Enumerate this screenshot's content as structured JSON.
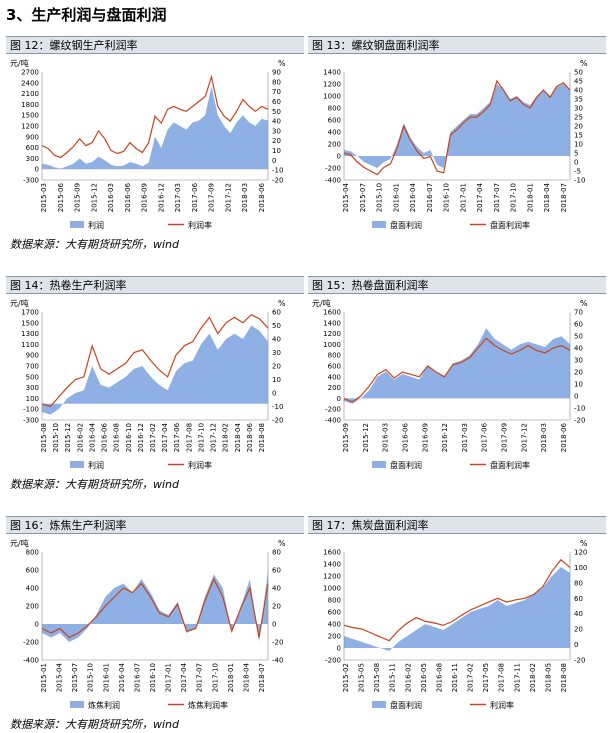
{
  "page": {
    "section_title": "3、生产利润与盘面利润",
    "source_note": "数据来源：大有期货研究所，wind"
  },
  "colors": {
    "area": "#8fb0e4",
    "line": "#c84318"
  },
  "chart_data": [
    {
      "id": "fig12",
      "type": "area+line",
      "title": "图 12：螺纹钢生产利润率",
      "left_unit": "元/吨",
      "right_unit": "%",
      "left_ticks": [
        "2700",
        "2400",
        "2100",
        "1800",
        "1500",
        "1200",
        "900",
        "600",
        "300",
        "0",
        "-300"
      ],
      "right_ticks": [
        "90",
        "80",
        "70",
        "60",
        "50",
        "40",
        "30",
        "20",
        "10",
        "0",
        "-10",
        "-20"
      ],
      "ylim_left": [
        -300,
        2700
      ],
      "ylim_right": [
        -20,
        90
      ],
      "x_labels": [
        "2015-03",
        "2015-06",
        "2015-09",
        "2015-12",
        "2016-03",
        "2016-06",
        "2016-09",
        "2016-12",
        "2017-03",
        "2017-06",
        "2017-09",
        "2017-12",
        "2018-03",
        "2018-06"
      ],
      "legend": [
        "利润",
        "利润率"
      ],
      "area_series": {
        "name": "利润",
        "values": [
          150,
          120,
          50,
          20,
          80,
          150,
          300,
          150,
          200,
          350,
          250,
          120,
          80,
          100,
          200,
          150,
          80,
          180,
          900,
          600,
          1100,
          1300,
          1200,
          1100,
          1300,
          1350,
          1500,
          2300,
          1500,
          1200,
          1000,
          1300,
          1500,
          1300,
          1200,
          1400,
          1350
        ]
      },
      "line_series": {
        "name": "利润率",
        "values": [
          15,
          12,
          5,
          3,
          8,
          14,
          22,
          15,
          18,
          30,
          22,
          10,
          7,
          9,
          18,
          12,
          8,
          18,
          45,
          38,
          52,
          55,
          52,
          50,
          55,
          60,
          65,
          85,
          55,
          45,
          40,
          50,
          62,
          55,
          50,
          55,
          52
        ]
      }
    },
    {
      "id": "fig13",
      "type": "area+line",
      "title": "图 13：螺纹钢盘面利润率",
      "left_unit": "",
      "right_unit": "%",
      "left_ticks": [
        "1400",
        "1200",
        "1000",
        "800",
        "600",
        "400",
        "200",
        "0",
        "-200",
        "-400"
      ],
      "right_ticks": [
        "50",
        "45",
        "40",
        "35",
        "30",
        "25",
        "20",
        "15",
        "10",
        "5",
        "0",
        "-5",
        "-10"
      ],
      "ylim_left": [
        -400,
        1400
      ],
      "ylim_right": [
        -10,
        50
      ],
      "x_labels": [
        "2015-04",
        "2015-07",
        "2015-10",
        "2016-01",
        "2016-04",
        "2016-07",
        "2016-10",
        "2017-01",
        "2017-04",
        "2017-07",
        "2017-10",
        "2018-01",
        "2018-04",
        "2018-07"
      ],
      "legend": [
        "盘面利润",
        "盘面利润率"
      ],
      "area_series": {
        "name": "盘面利润",
        "values": [
          100,
          80,
          0,
          -100,
          -150,
          -200,
          -100,
          -50,
          200,
          550,
          300,
          150,
          50,
          100,
          -150,
          -200,
          400,
          500,
          600,
          700,
          700,
          800,
          900,
          1200,
          1100,
          950,
          1000,
          900,
          850,
          1000,
          1100,
          1000,
          1150,
          1200,
          1100
        ]
      },
      "line_series": {
        "name": "盘面利润率",
        "values": [
          5,
          4,
          0,
          -3,
          -5,
          -7,
          -3,
          -1,
          8,
          20,
          12,
          6,
          2,
          3,
          -5,
          -6,
          15,
          18,
          22,
          25,
          25,
          28,
          32,
          45,
          40,
          34,
          36,
          32,
          30,
          36,
          40,
          36,
          42,
          44,
          40
        ]
      }
    },
    {
      "id": "fig14",
      "type": "area+line",
      "title": "图 14：热卷生产利润率",
      "left_unit": "元/吨",
      "right_unit": "%",
      "left_ticks": [
        "1700",
        "1500",
        "1300",
        "1100",
        "900",
        "700",
        "500",
        "300",
        "100",
        "-100",
        "-300"
      ],
      "right_ticks": [
        "60",
        "50",
        "40",
        "30",
        "20",
        "10",
        "0",
        "-10",
        "-20"
      ],
      "ylim_left": [
        -300,
        1700
      ],
      "ylim_right": [
        -20,
        60
      ],
      "x_labels": [
        "2015-08",
        "2015-10",
        "2015-12",
        "2016-02",
        "2016-04",
        "2016-06",
        "2016-08",
        "2016-10",
        "2016-12",
        "2017-02",
        "2017-04",
        "2017-06",
        "2017-08",
        "2017-10",
        "2017-12",
        "2018-02",
        "2018-04",
        "2018-06",
        "2018-08"
      ],
      "legend": [
        "利润",
        "利润率"
      ],
      "area_series": {
        "name": "利润",
        "values": [
          -150,
          -200,
          -100,
          100,
          200,
          250,
          700,
          350,
          300,
          400,
          500,
          650,
          700,
          500,
          350,
          250,
          600,
          750,
          800,
          1100,
          1300,
          1000,
          1200,
          1300,
          1200,
          1450,
          1350,
          1150
        ]
      },
      "line_series": {
        "name": "利润率",
        "values": [
          -8,
          -10,
          -3,
          4,
          10,
          12,
          35,
          18,
          14,
          18,
          22,
          30,
          32,
          24,
          17,
          12,
          28,
          35,
          38,
          48,
          56,
          44,
          52,
          56,
          52,
          58,
          55,
          48
        ]
      }
    },
    {
      "id": "fig15",
      "type": "area+line",
      "title": "图 15：热卷盘面利润率",
      "left_unit": "元/吨",
      "right_unit": "%",
      "left_ticks": [
        "1600",
        "1400",
        "1200",
        "1000",
        "800",
        "600",
        "400",
        "200",
        "0",
        "-200",
        "-400"
      ],
      "right_ticks": [
        "70",
        "60",
        "50",
        "40",
        "30",
        "20",
        "10",
        "0",
        "-10",
        "-20"
      ],
      "ylim_left": [
        -400,
        1600
      ],
      "ylim_right": [
        -20,
        70
      ],
      "x_labels": [
        "2015-09",
        "2015-12",
        "2016-03",
        "2016-06",
        "2016-09",
        "2016-12",
        "2017-03",
        "2017-06",
        "2017-09",
        "2017-12",
        "2018-03",
        "2018-06"
      ],
      "legend": [
        "盘面利润",
        "盘面利润率"
      ],
      "area_series": {
        "name": "盘面利润",
        "values": [
          -50,
          -100,
          0,
          150,
          400,
          500,
          350,
          450,
          400,
          350,
          600,
          500,
          400,
          650,
          700,
          800,
          1000,
          1300,
          1100,
          1000,
          900,
          1000,
          1050,
          1000,
          950,
          1100,
          1150,
          1000
        ]
      },
      "line_series": {
        "name": "盘面利润率",
        "values": [
          -2,
          -5,
          0,
          8,
          18,
          22,
          15,
          20,
          18,
          16,
          25,
          20,
          16,
          26,
          28,
          32,
          40,
          48,
          42,
          38,
          35,
          38,
          42,
          38,
          36,
          40,
          42,
          38
        ]
      }
    },
    {
      "id": "fig16",
      "type": "area+line",
      "title": "图 16：炼焦生产利润率",
      "left_unit": "元/吨",
      "right_unit": "%",
      "left_ticks": [
        "800",
        "600",
        "400",
        "200",
        "0",
        "-200",
        "-400"
      ],
      "right_ticks": [
        "80",
        "60",
        "40",
        "20",
        "0",
        "-20",
        "-40"
      ],
      "ylim_left": [
        -400,
        800
      ],
      "ylim_right": [
        -40,
        80
      ],
      "x_labels": [
        "2015-01",
        "2015-04",
        "2015-07",
        "2015-10",
        "2016-01",
        "2016-04",
        "2016-07",
        "2016-10",
        "2017-01",
        "2017-04",
        "2017-07",
        "2017-10",
        "2018-01",
        "2018-04",
        "2018-07"
      ],
      "legend": [
        "炼焦利润",
        "炼焦利润率"
      ],
      "area_series": {
        "name": "炼焦利润",
        "values": [
          -100,
          -150,
          -100,
          -200,
          -150,
          -50,
          100,
          300,
          400,
          450,
          350,
          500,
          350,
          150,
          100,
          250,
          -100,
          -50,
          300,
          550,
          400,
          -100,
          200,
          500,
          -200,
          600
        ]
      },
      "line_series": {
        "name": "炼焦利润率",
        "values": [
          -5,
          -10,
          -5,
          -15,
          -10,
          -2,
          8,
          20,
          30,
          40,
          35,
          45,
          30,
          12,
          8,
          22,
          -8,
          -5,
          25,
          50,
          30,
          -8,
          18,
          40,
          -15,
          45
        ]
      }
    },
    {
      "id": "fig17",
      "type": "area+line",
      "title": "图 17：焦炭盘面利润率",
      "left_unit": "",
      "right_unit": "%",
      "left_ticks": [
        "1600",
        "1400",
        "1200",
        "1000",
        "800",
        "600",
        "400",
        "200",
        "0",
        "-200"
      ],
      "right_ticks": [
        "120",
        "100",
        "80",
        "60",
        "40",
        "20",
        "0",
        "-20"
      ],
      "ylim_left": [
        -200,
        1600
      ],
      "ylim_right": [
        -20,
        120
      ],
      "x_labels": [
        "2015-02",
        "2015-05",
        "2015-08",
        "2015-11",
        "2016-02",
        "2016-05",
        "2016-08",
        "2016-11",
        "2017-02",
        "2017-05",
        "2017-08",
        "2017-11",
        "2018-02",
        "2018-05",
        "2018-08"
      ],
      "legend": [
        "盘面利润",
        "利润率"
      ],
      "area_series": {
        "name": "盘面利润",
        "values": [
          200,
          150,
          100,
          50,
          0,
          -50,
          100,
          200,
          300,
          400,
          350,
          300,
          400,
          500,
          600,
          650,
          700,
          800,
          700,
          750,
          800,
          900,
          1000,
          1200,
          1350,
          1250
        ]
      },
      "line_series": {
        "name": "利润率",
        "values": [
          25,
          22,
          20,
          15,
          10,
          5,
          18,
          28,
          35,
          30,
          28,
          25,
          30,
          38,
          45,
          50,
          55,
          60,
          55,
          58,
          60,
          65,
          75,
          95,
          110,
          100
        ]
      }
    }
  ]
}
